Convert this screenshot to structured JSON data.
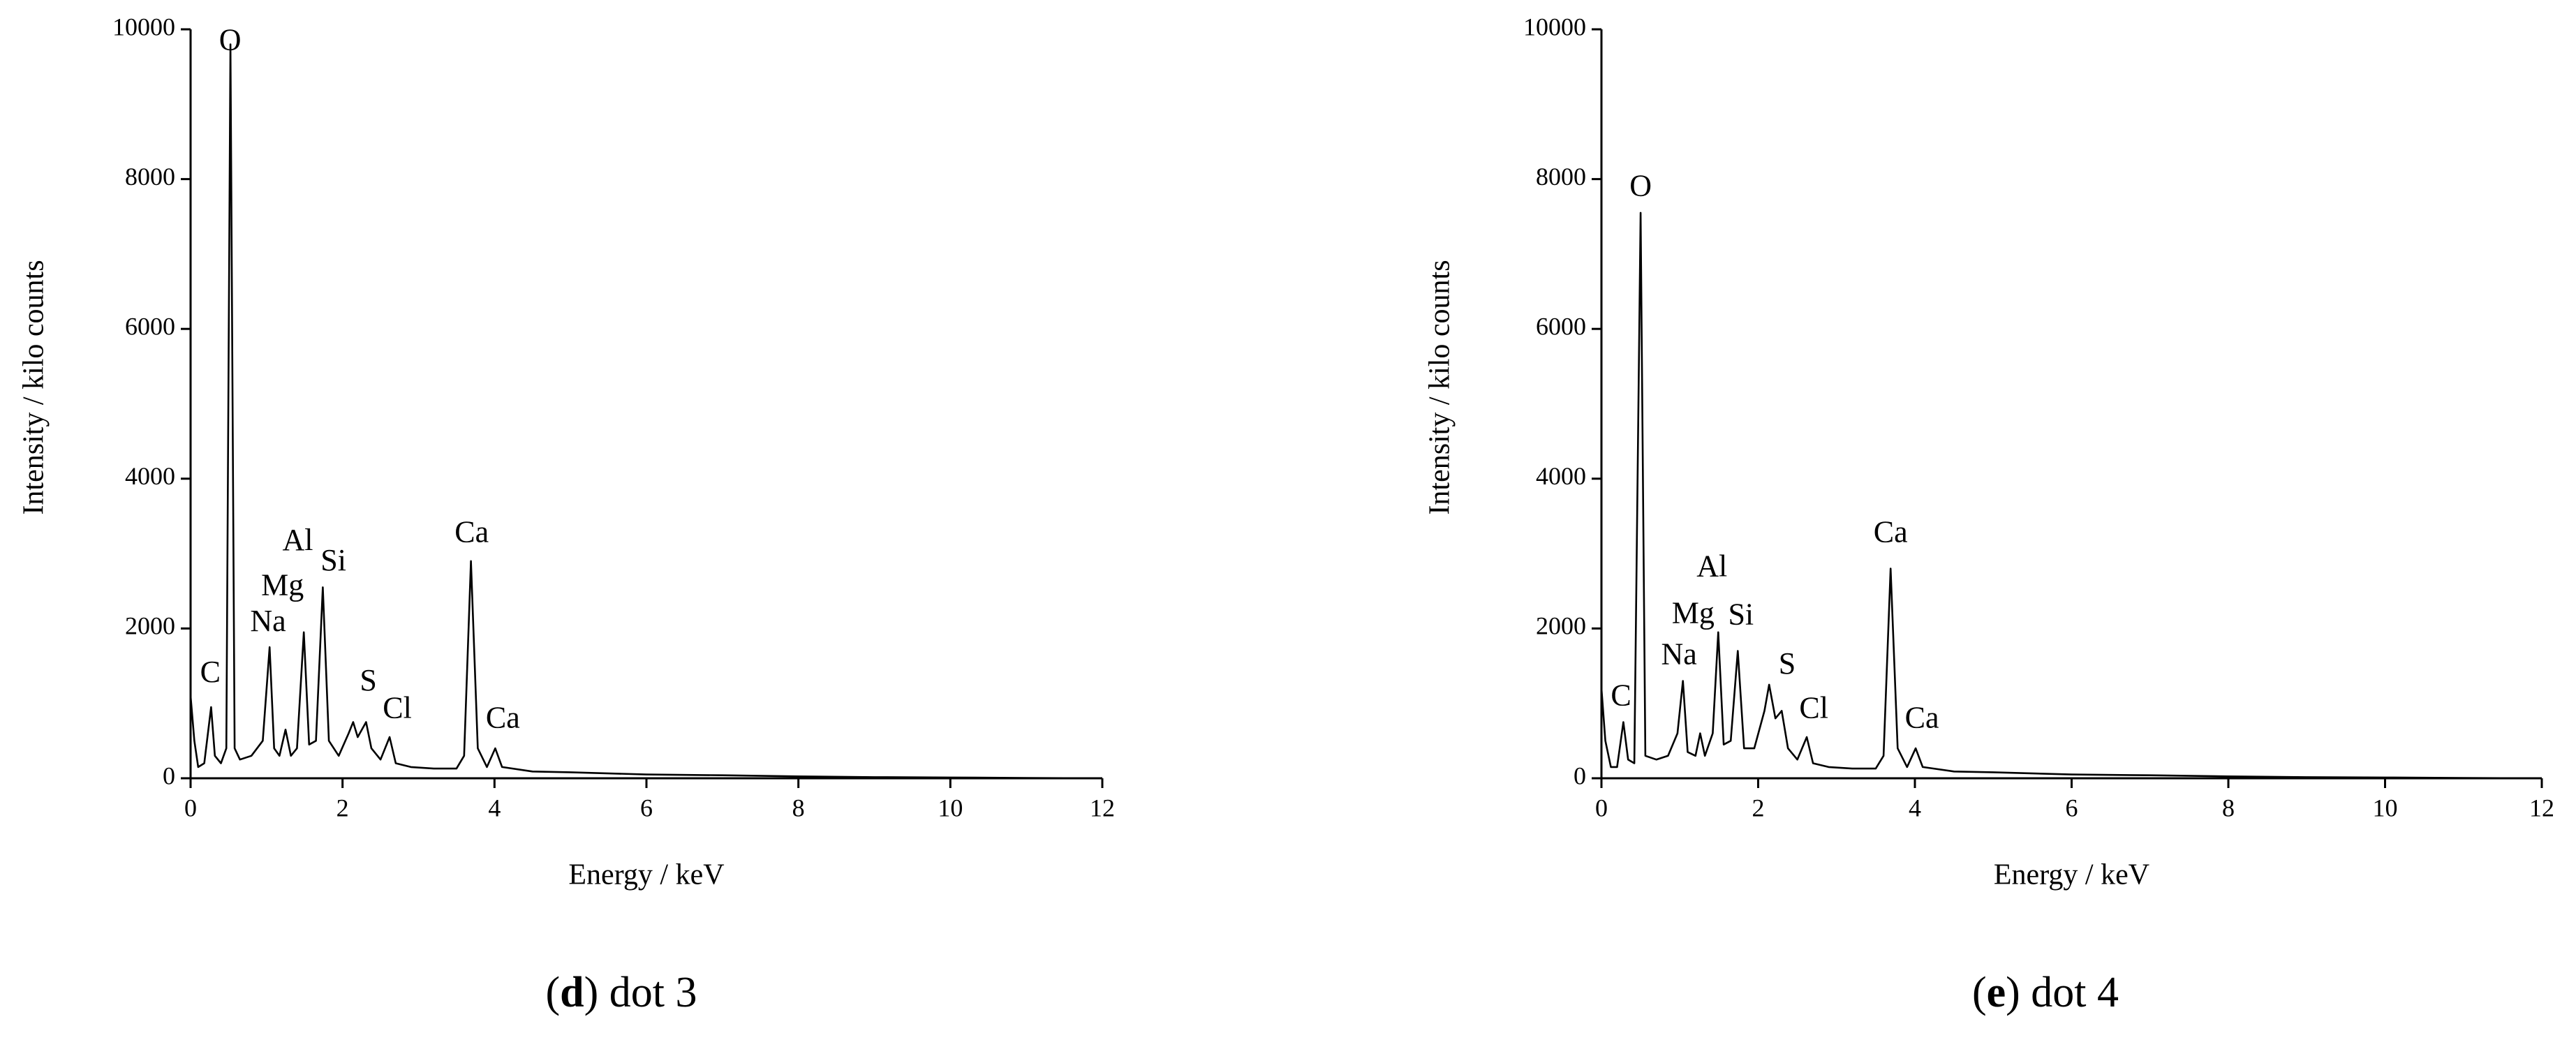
{
  "chart_data": [
    {
      "type": "line",
      "caption_parts": [
        "(",
        "d",
        ") dot 3"
      ],
      "x_label": "Energy / keV",
      "y_label": "Intensity / kilo counts",
      "xlim": [
        0,
        12
      ],
      "xticks": [
        0,
        2,
        4,
        6,
        8,
        10,
        12
      ],
      "ylim": [
        0,
        10000
      ],
      "yticks": [
        0,
        2000,
        4000,
        6000,
        8000,
        10000
      ],
      "color": "#000000",
      "x": [
        0,
        0.05,
        0.1,
        0.18,
        0.27,
        0.32,
        0.4,
        0.47,
        0.525,
        0.58,
        0.65,
        0.8,
        0.95,
        1.04,
        1.1,
        1.17,
        1.25,
        1.32,
        1.4,
        1.49,
        1.56,
        1.65,
        1.74,
        1.82,
        1.95,
        2.08,
        2.14,
        2.2,
        2.31,
        2.38,
        2.5,
        2.62,
        2.7,
        2.9,
        3.2,
        3.5,
        3.6,
        3.69,
        3.78,
        3.9,
        4.01,
        4.1,
        4.5,
        5,
        6,
        7,
        8,
        9,
        10,
        11,
        12
      ],
      "values": [
        1100,
        500,
        150,
        200,
        950,
        300,
        200,
        400,
        9800,
        400,
        250,
        300,
        500,
        1750,
        400,
        300,
        650,
        300,
        400,
        1950,
        450,
        500,
        2550,
        500,
        300,
        600,
        750,
        550,
        750,
        400,
        250,
        550,
        200,
        150,
        130,
        130,
        300,
        2900,
        400,
        150,
        400,
        150,
        90,
        80,
        50,
        40,
        25,
        15,
        10,
        5,
        0
      ],
      "annotations": [
        "C",
        "O",
        "Na",
        "Mg",
        "Al",
        "Si",
        "S",
        "Cl",
        "Ca",
        "Ca"
      ]
    },
    {
      "type": "line",
      "caption_parts": [
        "(",
        "e",
        ") dot 4"
      ],
      "x_label": "Energy / keV",
      "y_label": "Intensity / kilo counts",
      "xlim": [
        0,
        12
      ],
      "xticks": [
        0,
        2,
        4,
        6,
        8,
        10,
        12
      ],
      "ylim": [
        0,
        10000
      ],
      "yticks": [
        0,
        2000,
        4000,
        6000,
        8000,
        10000
      ],
      "color": "#000000",
      "x": [
        0,
        0.05,
        0.12,
        0.2,
        0.28,
        0.34,
        0.42,
        0.5,
        0.56,
        0.7,
        0.85,
        0.97,
        1.04,
        1.1,
        1.2,
        1.26,
        1.32,
        1.42,
        1.49,
        1.56,
        1.65,
        1.74,
        1.82,
        1.95,
        2.08,
        2.14,
        2.22,
        2.3,
        2.38,
        2.5,
        2.62,
        2.7,
        2.9,
        3.2,
        3.5,
        3.6,
        3.69,
        3.78,
        3.9,
        4.01,
        4.1,
        4.5,
        5,
        6,
        7,
        8,
        9,
        10,
        11,
        12
      ],
      "values": [
        1200,
        500,
        150,
        150,
        750,
        250,
        200,
        7550,
        300,
        250,
        300,
        600,
        1300,
        350,
        300,
        600,
        300,
        600,
        1950,
        450,
        500,
        1700,
        400,
        400,
        900,
        1250,
        800,
        900,
        400,
        250,
        550,
        200,
        150,
        130,
        130,
        300,
        2800,
        400,
        150,
        400,
        150,
        90,
        80,
        50,
        40,
        25,
        15,
        10,
        5,
        0
      ],
      "annotations": [
        "C",
        "O",
        "Na",
        "Mg",
        "Al",
        "Si",
        "S",
        "Cl",
        "Ca",
        "Ca"
      ]
    }
  ]
}
